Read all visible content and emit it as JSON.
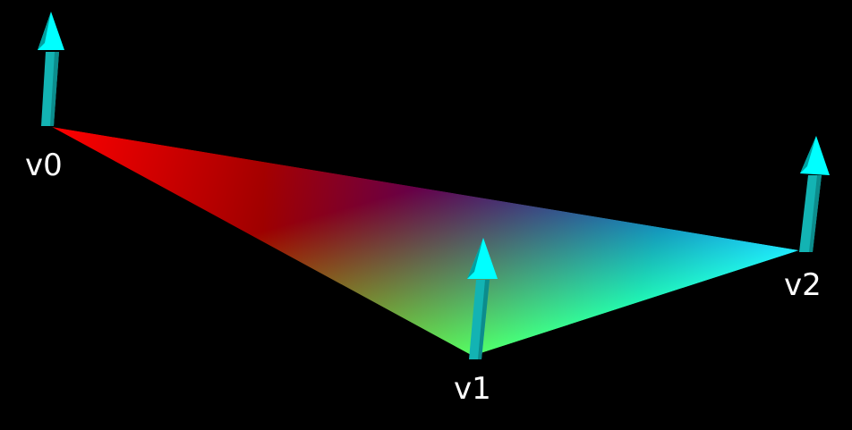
{
  "scene": {
    "background": "#000000",
    "vertices": [
      {
        "label": "v0",
        "color": "#ff0000"
      },
      {
        "label": "v1",
        "color": "#22ff00"
      },
      {
        "label": "v2",
        "color": "#0000ff"
      }
    ],
    "normal_arrow_color": "#00ffff",
    "normal_shaft_color": "#10b8b8",
    "icons": [
      "normal-arrow-icon"
    ]
  }
}
